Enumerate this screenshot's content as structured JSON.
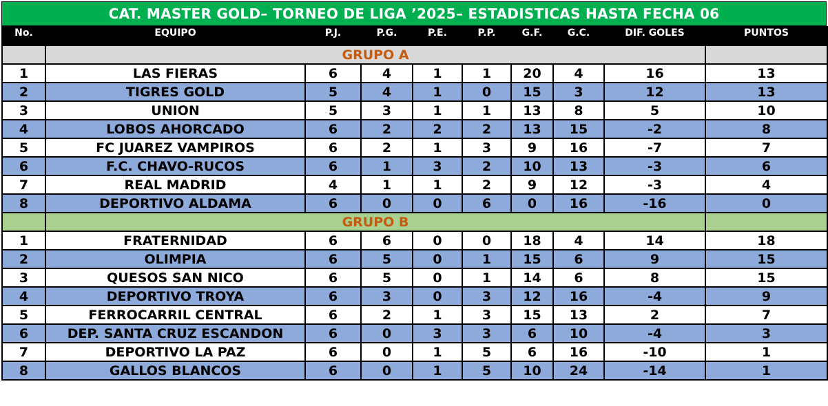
{
  "title": "CAT. MASTER GOLD– TORNEO DE LIGA ’2025– ESTADISTICAS HASTA FECHA 06",
  "headers": [
    "No.",
    "EQUIPO",
    "P.J.",
    "P.G.",
    "P.E.",
    "P.P.",
    "G.F.",
    "G.C.",
    "DIF. GOLES",
    "PUNTOS"
  ],
  "colors": {
    "title_bg": "#00b050",
    "header_bg": "#000000",
    "row_alt": "#8eaadb",
    "group_a_bg": "#d9d9d9",
    "group_b_bg": "#a9d08e",
    "group_label": "#c55a11"
  },
  "groups": [
    {
      "label": "GRUPO A",
      "rows": [
        [
          "1",
          "LAS FIERAS",
          "6",
          "4",
          "1",
          "1",
          "20",
          "4",
          "16",
          "13"
        ],
        [
          "2",
          "TIGRES GOLD",
          "5",
          "4",
          "1",
          "0",
          "15",
          "3",
          "12",
          "13"
        ],
        [
          "3",
          "UNION",
          "5",
          "3",
          "1",
          "1",
          "13",
          "8",
          "5",
          "10"
        ],
        [
          "4",
          "LOBOS AHORCADO",
          "6",
          "2",
          "2",
          "2",
          "13",
          "15",
          "-2",
          "8"
        ],
        [
          "5",
          "FC JUAREZ VAMPIROS",
          "6",
          "2",
          "1",
          "3",
          "9",
          "16",
          "-7",
          "7"
        ],
        [
          "6",
          "F.C. CHAVO-RUCOS",
          "6",
          "1",
          "3",
          "2",
          "10",
          "13",
          "-3",
          "6"
        ],
        [
          "7",
          "REAL MADRID",
          "4",
          "1",
          "1",
          "2",
          "9",
          "12",
          "-3",
          "4"
        ],
        [
          "8",
          "DEPORTIVO ALDAMA",
          "6",
          "0",
          "0",
          "6",
          "0",
          "16",
          "-16",
          "0"
        ]
      ]
    },
    {
      "label": "GRUPO B",
      "rows": [
        [
          "1",
          "FRATERNIDAD",
          "6",
          "6",
          "0",
          "0",
          "18",
          "4",
          "14",
          "18"
        ],
        [
          "2",
          "OLIMPIA",
          "6",
          "5",
          "0",
          "1",
          "15",
          "6",
          "9",
          "15"
        ],
        [
          "3",
          "QUESOS SAN NICO",
          "6",
          "5",
          "0",
          "1",
          "14",
          "6",
          "8",
          "15"
        ],
        [
          "4",
          "DEPORTIVO TROYA",
          "6",
          "3",
          "0",
          "3",
          "12",
          "16",
          "-4",
          "9"
        ],
        [
          "5",
          "FERROCARRIL CENTRAL",
          "6",
          "2",
          "1",
          "3",
          "15",
          "13",
          "2",
          "7"
        ],
        [
          "6",
          "DEP. SANTA CRUZ ESCANDON",
          "6",
          "0",
          "3",
          "3",
          "6",
          "10",
          "-4",
          "3"
        ],
        [
          "7",
          "DEPORTIVO LA PAZ",
          "6",
          "0",
          "1",
          "5",
          "6",
          "16",
          "-10",
          "1"
        ],
        [
          "8",
          "GALLOS BLANCOS",
          "6",
          "0",
          "1",
          "5",
          "10",
          "24",
          "-14",
          "1"
        ]
      ]
    }
  ]
}
